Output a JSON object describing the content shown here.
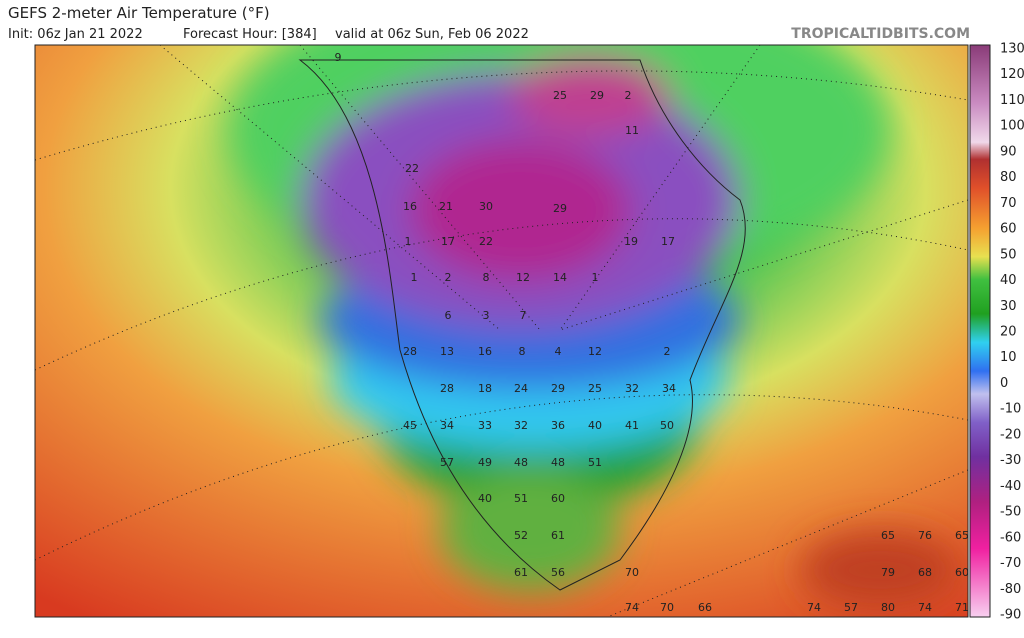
{
  "header": {
    "title": "GEFS 2-meter Air Temperature (°F)",
    "init": "Init: 06z Jan 21 2022",
    "forecast_hour": "Forecast Hour: [384]",
    "valid": "valid at 06z Sun, Feb 06 2022",
    "site": "TROPICALTIDBITS.COM"
  },
  "colorbar": {
    "ticks": [
      130,
      120,
      110,
      100,
      90,
      80,
      70,
      60,
      50,
      40,
      30,
      20,
      10,
      0,
      -10,
      -20,
      -30,
      -40,
      -50,
      -60,
      -70,
      -80,
      -90
    ]
  },
  "map": {
    "labels": [
      9,
      25,
      29,
      2,
      11,
      22,
      16,
      21,
      30,
      29,
      1,
      17,
      22,
      19,
      17,
      1,
      2,
      8,
      12,
      14,
      1,
      6,
      3,
      7,
      28,
      13,
      16,
      8,
      4,
      12,
      2,
      28,
      18,
      24,
      29,
      25,
      32,
      34,
      45,
      34,
      33,
      32,
      36,
      40,
      41,
      50,
      57,
      49,
      48,
      48,
      51,
      40,
      51,
      60,
      52,
      61,
      61,
      56,
      70,
      74,
      70,
      66,
      65,
      76,
      65,
      79,
      68,
      60,
      74,
      57,
      80,
      74,
      71
    ]
  }
}
